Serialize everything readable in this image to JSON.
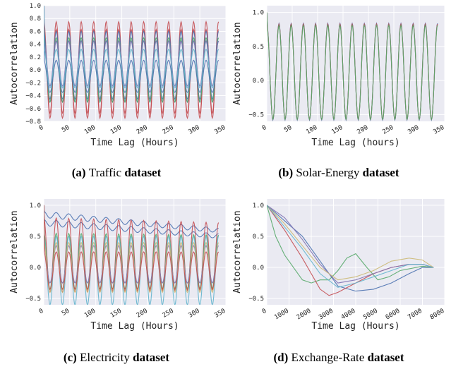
{
  "chart_data": [
    {
      "type": "line",
      "caption_label": "(a)",
      "caption_name": "Traffic",
      "caption_suffix": "dataset",
      "xlabel": "Time Lag (Hours)",
      "ylabel": "Autocorrelation",
      "xlim": [
        0,
        350
      ],
      "ylim": [
        -0.8,
        1.0
      ],
      "xticks": [
        "0",
        "50",
        "100",
        "150",
        "200",
        "250",
        "300",
        "350"
      ],
      "yticks": [
        "−0.8",
        "−0.6",
        "−0.4",
        "−0.2",
        "0.0",
        "0.2",
        "0.4",
        "0.6",
        "0.8",
        "1.0"
      ],
      "grid": true,
      "series_x_max": 336,
      "series": [
        {
          "color": "#c44e52",
          "period": 24,
          "amp": 0.75,
          "offset": 0.0,
          "decay": 0.0
        },
        {
          "color": "#c44e52",
          "period": 24,
          "amp": 0.65,
          "offset": -0.02,
          "decay": 0.0
        },
        {
          "color": "#4c72b0",
          "period": 24,
          "amp": 0.55,
          "offset": 0.05,
          "decay": 0.0
        },
        {
          "color": "#4c72b0",
          "period": 24,
          "amp": 0.45,
          "offset": 0.0,
          "decay": 0.0
        },
        {
          "color": "#55a868",
          "period": 24,
          "amp": 0.5,
          "offset": 0.0,
          "decay": 0.0
        },
        {
          "color": "#8172b2",
          "period": 24,
          "amp": 0.35,
          "offset": 0.1,
          "decay": 0.0
        },
        {
          "color": "#4c72b0",
          "period": 24,
          "amp": 0.25,
          "offset": -0.1,
          "decay": 0.0
        },
        {
          "color": "#64b5cd",
          "period": 24,
          "amp": 0.3,
          "offset": 0.02,
          "decay": 0.0
        }
      ]
    },
    {
      "type": "line",
      "caption_label": "(b)",
      "caption_name": "Solar-Energy",
      "caption_suffix": "dataset",
      "xlabel": "Time Lag (hours)",
      "ylabel": "Autocorrelation",
      "xlim": [
        0,
        350
      ],
      "ylim": [
        -0.6,
        1.1
      ],
      "xticks": [
        "0",
        "50",
        "100",
        "150",
        "200",
        "250",
        "300",
        "350"
      ],
      "yticks": [
        "−0.5",
        "0.0",
        "0.5",
        "1.0"
      ],
      "yticks_values": [
        -0.5,
        0.0,
        0.5,
        1.0
      ],
      "grid": true,
      "series_x_max": 336,
      "series": [
        {
          "color": "#4c72b0",
          "period": 24,
          "amp": 0.71,
          "offset": 0.13,
          "decay": 0.0
        },
        {
          "color": "#c44e52",
          "period": 24,
          "amp": 0.7,
          "offset": 0.13,
          "decay": 0.0
        },
        {
          "color": "#55a868",
          "period": 24,
          "amp": 0.69,
          "offset": 0.12,
          "decay": 0.0
        }
      ]
    },
    {
      "type": "line",
      "caption_label": "(c)",
      "caption_name": "Electricity",
      "caption_suffix": "dataset",
      "xlabel": "Time Lag (Hours)",
      "ylabel": "Autocorrelation",
      "xlim": [
        0,
        350
      ],
      "ylim": [
        -0.6,
        1.1
      ],
      "xticks": [
        "0",
        "50",
        "100",
        "150",
        "200",
        "250",
        "300",
        "350"
      ],
      "yticks": [
        "−0.5",
        "0.0",
        "0.5",
        "1.0"
      ],
      "yticks_values": [
        -0.5,
        0.0,
        0.5,
        1.0
      ],
      "grid": true,
      "series_x_max": 336,
      "series": [
        {
          "color": "#4c72b0",
          "period": 24,
          "amp": 0.05,
          "offset": 0.85,
          "decay": 0.3
        },
        {
          "color": "#4c72b0",
          "period": 24,
          "amp": 0.05,
          "offset": 0.72,
          "decay": 0.3
        },
        {
          "color": "#c44e52",
          "period": 24,
          "amp": 0.6,
          "offset": 0.2,
          "decay": 0.1
        },
        {
          "color": "#55a868",
          "period": 24,
          "amp": 0.45,
          "offset": 0.1,
          "decay": 0.05
        },
        {
          "color": "#64b5cd",
          "period": 24,
          "amp": 0.55,
          "offset": -0.05,
          "decay": 0.0
        },
        {
          "color": "#8172b2",
          "period": 24,
          "amp": 0.3,
          "offset": 0.05,
          "decay": 0.0
        },
        {
          "color": "#ccb974",
          "period": 24,
          "amp": 0.4,
          "offset": 0.0,
          "decay": 0.0
        },
        {
          "color": "#c44e52",
          "period": 24,
          "amp": 0.3,
          "offset": -0.05,
          "decay": 0.0
        }
      ]
    },
    {
      "type": "line",
      "caption_label": "(d)",
      "caption_name": "Exchange-Rate",
      "caption_suffix": "dataset",
      "xlabel": "Time Lag (Hours)",
      "ylabel": "Autocorrelation",
      "xlim": [
        0,
        8000
      ],
      "ylim": [
        -0.6,
        1.1
      ],
      "xticks": [
        "0",
        "1000",
        "2000",
        "3000",
        "4000",
        "5000",
        "6000",
        "7000",
        "8000"
      ],
      "yticks": [
        "−0.5",
        "0.0",
        "0.5",
        "1.0"
      ],
      "yticks_values": [
        -0.5,
        0.0,
        0.5,
        1.0
      ],
      "grid": true,
      "series": [
        {
          "color": "#4c72b0",
          "x": [
            0,
            800,
            1600,
            2400,
            3200,
            4000,
            4800,
            5600,
            6400,
            7000,
            7500
          ],
          "y": [
            1.0,
            0.75,
            0.5,
            0.1,
            -0.3,
            -0.38,
            -0.35,
            -0.25,
            -0.1,
            0.0,
            0.0
          ]
        },
        {
          "color": "#55a868",
          "x": [
            0,
            400,
            800,
            1200,
            1600,
            2000,
            2400,
            2800,
            3200,
            3600,
            4000,
            4500,
            5000,
            5500,
            6000,
            7000,
            7500
          ],
          "y": [
            1.0,
            0.5,
            0.2,
            0.0,
            -0.2,
            -0.25,
            -0.2,
            -0.2,
            -0.05,
            0.15,
            0.22,
            0.0,
            -0.2,
            -0.15,
            -0.05,
            0.02,
            0.0
          ]
        },
        {
          "color": "#c44e52",
          "x": [
            0,
            800,
            1600,
            2400,
            2800,
            3200,
            4000,
            4800,
            5600,
            6400,
            7000,
            7500
          ],
          "y": [
            1.0,
            0.6,
            0.15,
            -0.35,
            -0.45,
            -0.4,
            -0.25,
            -0.1,
            0.0,
            0.05,
            0.05,
            0.0
          ]
        },
        {
          "color": "#8172b2",
          "x": [
            0,
            800,
            1600,
            2400,
            3200,
            4000,
            4800,
            5600,
            6400,
            7000,
            7500
          ],
          "y": [
            1.0,
            0.8,
            0.45,
            0.05,
            -0.25,
            -0.2,
            -0.1,
            0.0,
            0.05,
            0.05,
            0.0
          ]
        },
        {
          "color": "#ccb974",
          "x": [
            0,
            800,
            1600,
            2400,
            3200,
            4000,
            4800,
            5600,
            6400,
            7000,
            7500
          ],
          "y": [
            1.0,
            0.7,
            0.35,
            0.0,
            -0.2,
            -0.15,
            -0.05,
            0.1,
            0.15,
            0.12,
            0.0
          ]
        },
        {
          "color": "#64b5cd",
          "x": [
            0,
            800,
            1600,
            2400,
            3200,
            4000,
            4800,
            5600,
            6400,
            7000,
            7500
          ],
          "y": [
            1.0,
            0.65,
            0.3,
            -0.1,
            -0.32,
            -0.25,
            -0.15,
            -0.05,
            0.05,
            0.05,
            0.0
          ]
        }
      ]
    }
  ]
}
